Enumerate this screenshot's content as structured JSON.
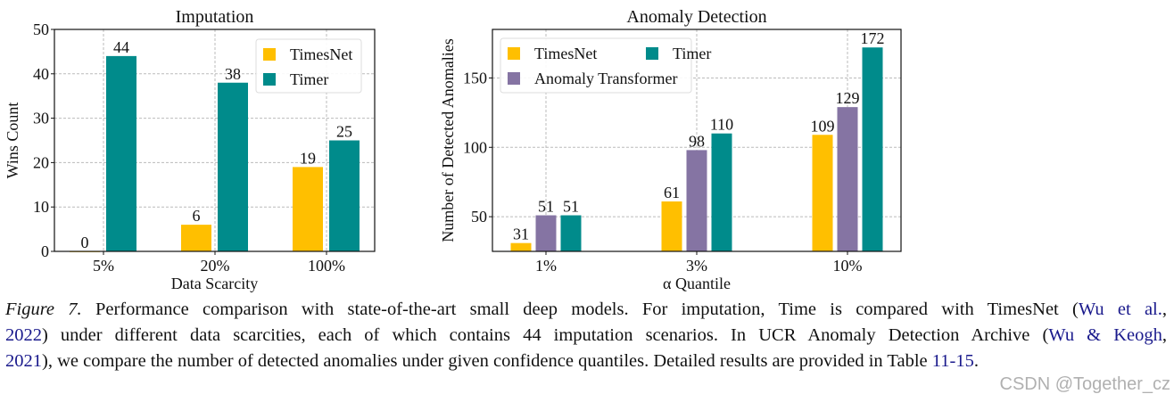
{
  "chart_data": [
    {
      "type": "bar",
      "title": "Imputation",
      "xlabel": "Data Scarcity",
      "ylabel": "Wins Count",
      "categories": [
        "5%",
        "20%",
        "100%"
      ],
      "ylim": [
        0,
        50
      ],
      "yticks": [
        0,
        10,
        20,
        30,
        40,
        50
      ],
      "grid": true,
      "legend": "top-right",
      "series": [
        {
          "name": "TimesNet",
          "color": "#FFBF00",
          "values": [
            0,
            6,
            19
          ]
        },
        {
          "name": "Timer",
          "color": "#008B8B",
          "values": [
            44,
            38,
            25
          ]
        }
      ]
    },
    {
      "type": "bar",
      "title": "Anomaly Detection",
      "xlabel": "α Quantile",
      "ylabel": "Number of Detected Anomalies",
      "categories": [
        "1%",
        "3%",
        "10%"
      ],
      "ylim": [
        25,
        185
      ],
      "yticks": [
        50,
        100,
        150
      ],
      "grid": true,
      "legend": "top-left",
      "series": [
        {
          "name": "TimesNet",
          "color": "#FFBF00",
          "values": [
            31,
            61,
            109
          ]
        },
        {
          "name": "Anomaly Transformer",
          "color": "#8574A3",
          "values": [
            51,
            98,
            129
          ]
        },
        {
          "name": "Timer",
          "color": "#008B8B",
          "values": [
            51,
            110,
            172
          ]
        }
      ]
    }
  ],
  "caption": {
    "lines": [
      [
        {
          "t": "Figure 7.",
          "style": "italic"
        },
        {
          "t": " Performance comparison with state-of-the-art small deep models. For imputation, Time is compared with TimesNet ("
        },
        {
          "t": "Wu et al.",
          "style": "cite"
        },
        {
          "t": ","
        }
      ],
      [
        {
          "t": "2022",
          "style": "cite"
        },
        {
          "t": ") under different data scarcities, each of which contains 44 imputation scenarios. In UCR Anomaly Detection Archive ("
        },
        {
          "t": "Wu & Keogh",
          "style": "cite"
        },
        {
          "t": ","
        }
      ],
      [
        {
          "t": "2021",
          "style": "cite"
        },
        {
          "t": "), we compare the number of detected anomalies under given confidence quantiles. Detailed results are provided in Table "
        },
        {
          "t": "11-15",
          "style": "cite"
        },
        {
          "t": "."
        }
      ]
    ]
  },
  "watermark": "CSDN @Together_cz"
}
